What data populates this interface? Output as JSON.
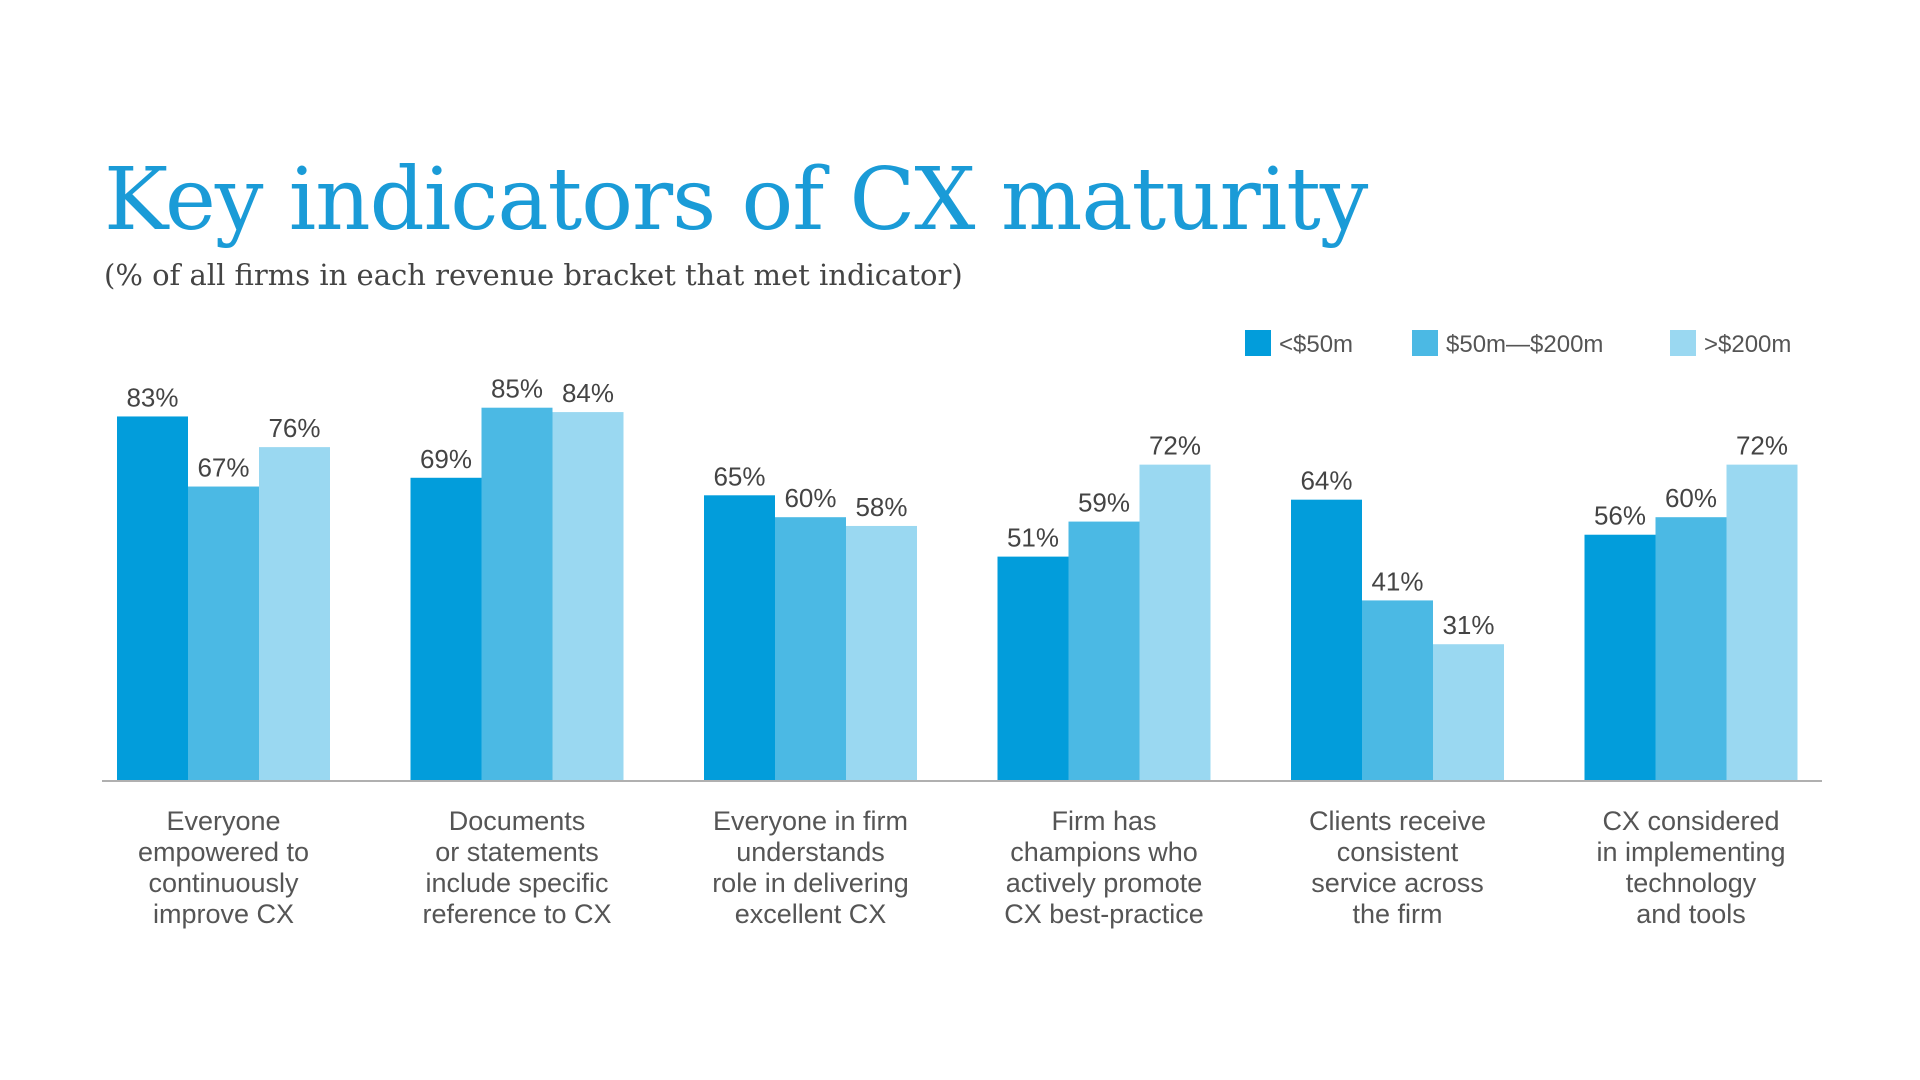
{
  "chart_data": {
    "type": "bar",
    "title": "Key indicators of CX maturity",
    "subtitle": "(% of all firms in each revenue bracket that met indicator)",
    "categories": [
      "Everyone empowered to continuously improve CX",
      "Documents or statements include specific reference to CX",
      "Everyone in firm understands role in delivering excellent CX",
      "Firm has champions who actively promote CX best-practice",
      "Clients receive consistent service across the firm",
      "CX considered in implementing technology and tools"
    ],
    "category_lines": [
      [
        "Everyone",
        "empowered to",
        "continuously",
        "improve CX"
      ],
      [
        "Documents",
        "or statements",
        "include specific",
        "reference to CX"
      ],
      [
        "Everyone in firm",
        "understands",
        "role in delivering",
        "excellent CX"
      ],
      [
        "Firm has",
        "champions who",
        "actively promote",
        "CX best-practice"
      ],
      [
        "Clients receive",
        "consistent",
        "service across",
        "the firm"
      ],
      [
        "CX considered",
        "in implementing",
        "technology",
        "and tools"
      ]
    ],
    "series": [
      {
        "name": "<$50m",
        "color": "#029ddb",
        "values": [
          83,
          69,
          65,
          51,
          64,
          56
        ]
      },
      {
        "name": "$50m—$200m",
        "color": "#4bb9e4",
        "values": [
          67,
          85,
          60,
          59,
          41,
          60
        ]
      },
      {
        "name": ">$200m",
        "color": "#9ad8f1",
        "values": [
          76,
          84,
          58,
          72,
          31,
          72
        ]
      }
    ],
    "value_suffix": "%",
    "ylim": [
      0,
      100
    ],
    "grid": false,
    "legend_position": "top-right",
    "axis_color": "#b0b0b0"
  }
}
